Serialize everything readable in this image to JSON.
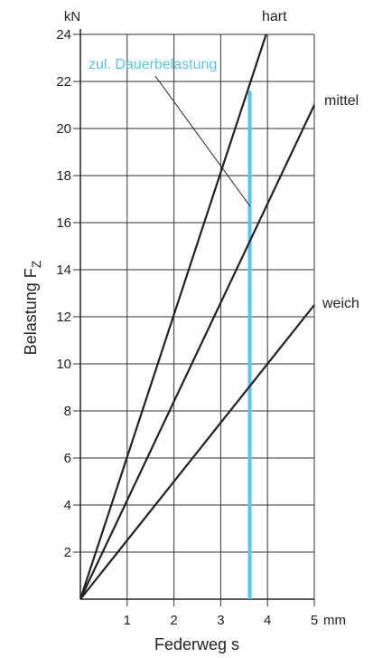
{
  "chart_data": {
    "type": "line",
    "title": "",
    "xlabel": "Federweg s",
    "ylabel": "Belastung F",
    "ylabel_subscript": "Z",
    "x_unit": "mm",
    "y_unit": "kN",
    "xlim": [
      0,
      5
    ],
    "ylim": [
      0,
      24
    ],
    "x_ticks": [
      1,
      2,
      3,
      4,
      5
    ],
    "y_ticks": [
      2,
      4,
      6,
      8,
      10,
      12,
      14,
      16,
      18,
      20,
      22,
      24
    ],
    "grid": true,
    "series": [
      {
        "name": "hart",
        "x": [
          0,
          3.97
        ],
        "y": [
          0,
          24
        ],
        "color": "#222222"
      },
      {
        "name": "mittel",
        "x": [
          0,
          5
        ],
        "y": [
          0,
          21
        ],
        "color": "#222222"
      },
      {
        "name": "weich",
        "x": [
          0,
          5
        ],
        "y": [
          0,
          12.5
        ],
        "color": "#222222"
      }
    ],
    "annotations": [
      {
        "text": "zul. Dauerbelastung",
        "x": 3.62,
        "type": "vertical-line",
        "color": "#5bc4e8"
      }
    ]
  }
}
